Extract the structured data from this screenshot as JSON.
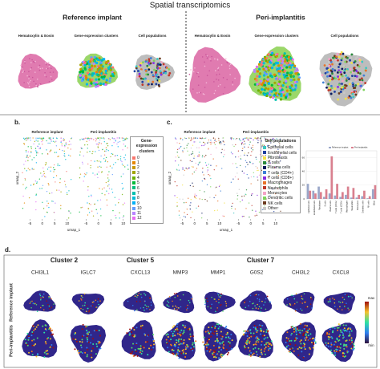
{
  "title": "Spatial transcriptomics",
  "panel_a": {
    "groups": [
      {
        "title": "Reference implant",
        "subpanels": [
          "Hematoxylin & Eosin",
          "Gene-expression clusters",
          "Cell populations"
        ]
      },
      {
        "title": "Peri-implantitis",
        "subpanels": [
          "Hematoxylin & Eosin",
          "Gene-expression clusters",
          "Cell populations"
        ]
      }
    ]
  },
  "panel_b": {
    "label": "b.",
    "plots": [
      "Reference implant",
      "Peri-implantitis"
    ],
    "x_label": "umap_1",
    "y_label": "umap_2",
    "xlim": [
      -8,
      12
    ],
    "xticks": [
      -5,
      0,
      5,
      10
    ],
    "legend_title": "Gene-expression clusters",
    "clusters": [
      0,
      1,
      2,
      3,
      4,
      5,
      6,
      7,
      8,
      9,
      10,
      11,
      12
    ],
    "colors": [
      "#f8766d",
      "#e58700",
      "#c99800",
      "#a3a500",
      "#6bb100",
      "#00ba38",
      "#00bf7d",
      "#00c0af",
      "#00bcd8",
      "#00b0f6",
      "#619cff",
      "#b983ff",
      "#e76bf3"
    ]
  },
  "panel_c": {
    "label": "c.",
    "plots": [
      "Reference implant",
      "Peri-implantitis"
    ],
    "x_label": "umap_1",
    "y_label": "umap_2",
    "xlim": [
      -8,
      12
    ],
    "xticks": [
      -5,
      0,
      5,
      10
    ],
    "legend_title": "Cell populations",
    "populations": [
      "Epithelial cells",
      "Endothelial cells",
      "Fibroblasts",
      "B cells",
      "Plasma cells",
      "T cells (CD4+)",
      "T cells (CD8+)",
      "Macrophages",
      "Neutrophils",
      "Monocytes",
      "Dendritic cells",
      "NK cells",
      "Other"
    ],
    "colors": [
      "#3ec7c0",
      "#1f3fa0",
      "#f2e14a",
      "#2a8a3c",
      "#0b1a5e",
      "#3d7fd6",
      "#8a2be2",
      "#e8732a",
      "#c0392b",
      "#f5a3c7",
      "#7fd35e",
      "#6b3b1f",
      "#c8c8c8"
    ],
    "bar_chart": {
      "type": "bar",
      "ylim": [
        0,
        70
      ],
      "yticks": [
        0,
        20,
        40,
        60
      ],
      "series": [
        {
          "name": "Reference implant",
          "color": "#9aa7c9",
          "values": [
            22,
            12,
            18,
            3,
            8,
            5,
            3,
            6,
            2,
            2,
            4,
            1,
            14
          ]
        },
        {
          "name": "Peri-implantitis",
          "color": "#d9808f",
          "values": [
            12,
            8,
            10,
            14,
            62,
            22,
            10,
            18,
            16,
            6,
            12,
            4,
            20
          ]
        }
      ]
    }
  },
  "panel_d": {
    "label": "d.",
    "clusters": [
      {
        "name": "Cluster 2",
        "genes": [
          "CHI3L1",
          "IGLC7"
        ]
      },
      {
        "name": "Cluster 5",
        "genes": [
          "CXCL13"
        ]
      },
      {
        "name": "Cluster 7",
        "genes": [
          "MMP3",
          "MMP1",
          "G0S2",
          "CHI3L2",
          "CXCL8"
        ]
      }
    ],
    "rows": [
      "Reference implant",
      "Peri-implantitis"
    ],
    "colorbar": [
      "max",
      "min"
    ]
  }
}
